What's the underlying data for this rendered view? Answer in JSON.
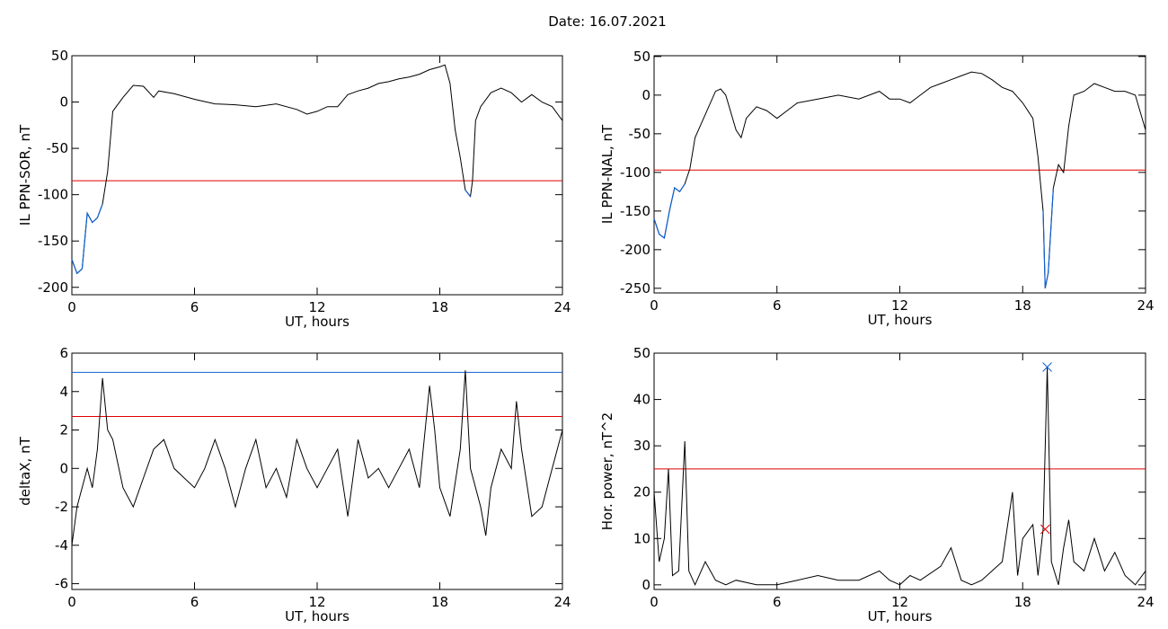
{
  "title": "Date:  16.07.2021",
  "chart_data": [
    {
      "type": "line",
      "ylabel": "IL PPN-SOR, nT",
      "xlabel": "UT, hours",
      "xlim": [
        0,
        24
      ],
      "xticks": [
        0,
        6,
        12,
        18,
        24
      ],
      "ylim": [
        -208,
        50
      ],
      "yticks": [
        -200,
        -150,
        -100,
        -50,
        0,
        50
      ],
      "x": [
        0,
        0.25,
        0.5,
        0.75,
        1,
        1.25,
        1.5,
        1.75,
        2,
        2.5,
        3,
        3.5,
        4,
        4.25,
        5,
        6,
        7,
        8,
        9,
        10,
        11,
        11.5,
        12,
        12.5,
        13,
        13.5,
        14,
        14.5,
        15,
        15.5,
        16,
        16.5,
        17,
        17.5,
        18,
        18.25,
        18.5,
        18.75,
        19,
        19.25,
        19.5,
        19.6,
        19.75,
        20,
        20.5,
        21,
        21.5,
        22,
        22.5,
        23,
        23.5,
        24
      ],
      "series": [
        {
          "color": "#000000",
          "below_color": "#1060d0",
          "values": [
            -170,
            -185,
            -180,
            -120,
            -130,
            -125,
            -110,
            -75,
            -10,
            5,
            18,
            17,
            5,
            12,
            9,
            3,
            -2,
            -3,
            -5,
            -2,
            -8,
            -13,
            -10,
            -5,
            -5,
            8,
            12,
            15,
            20,
            22,
            25,
            27,
            30,
            35,
            38,
            40,
            20,
            -30,
            -60,
            -95,
            -102,
            -85,
            -20,
            -5,
            10,
            15,
            10,
            0,
            8,
            0,
            -5,
            -20
          ]
        }
      ],
      "hlines": [
        {
          "value": -85,
          "color": "#e00000"
        }
      ]
    },
    {
      "type": "line",
      "ylabel": "IL PPN-NAL, nT",
      "xlabel": "UT, hours",
      "xlim": [
        0,
        24
      ],
      "xticks": [
        0,
        6,
        12,
        18,
        24
      ],
      "ylim": [
        -256,
        51
      ],
      "yticks": [
        -250,
        -200,
        -150,
        -100,
        -50,
        0,
        50
      ],
      "x": [
        0,
        0.25,
        0.5,
        0.75,
        1,
        1.25,
        1.5,
        1.75,
        2,
        2.5,
        3,
        3.25,
        3.5,
        4,
        4.25,
        4.5,
        5,
        5.5,
        6,
        6.5,
        7,
        8,
        9,
        10,
        11,
        11.5,
        12,
        12.5,
        13,
        13.5,
        14,
        14.5,
        15,
        15.5,
        16,
        16.5,
        17,
        17.5,
        18,
        18.5,
        18.75,
        19,
        19.1,
        19.25,
        19.5,
        19.75,
        20,
        20.25,
        20.5,
        21,
        21.5,
        22,
        22.5,
        23,
        23.5,
        24
      ],
      "series": [
        {
          "color": "#000000",
          "below_color": "#1060d0",
          "values": [
            -160,
            -180,
            -185,
            -150,
            -120,
            -125,
            -115,
            -95,
            -55,
            -25,
            5,
            8,
            0,
            -45,
            -55,
            -30,
            -15,
            -20,
            -30,
            -20,
            -10,
            -5,
            0,
            -5,
            5,
            -5,
            -5,
            -10,
            0,
            10,
            15,
            20,
            25,
            30,
            28,
            20,
            10,
            5,
            -10,
            -30,
            -80,
            -150,
            -250,
            -230,
            -120,
            -90,
            -100,
            -40,
            0,
            5,
            15,
            10,
            5,
            5,
            0,
            -45
          ]
        }
      ],
      "hlines": [
        {
          "value": -97,
          "color": "#e00000"
        }
      ]
    },
    {
      "type": "line",
      "ylabel": "deltaX, nT",
      "xlabel": "UT, hours",
      "xlim": [
        0,
        24
      ],
      "xticks": [
        0,
        6,
        12,
        18,
        24
      ],
      "ylim": [
        -6.3,
        6
      ],
      "yticks": [
        -6,
        -4,
        -2,
        0,
        2,
        4,
        6
      ],
      "x": [
        0,
        0.25,
        0.5,
        0.75,
        1,
        1.25,
        1.5,
        1.75,
        2,
        2.5,
        3,
        3.5,
        4,
        4.5,
        5,
        5.5,
        6,
        6.5,
        7,
        7.5,
        8,
        8.5,
        9,
        9.5,
        10,
        10.5,
        11,
        11.5,
        12,
        12.5,
        13,
        13.5,
        14,
        14.5,
        15,
        15.5,
        16,
        16.5,
        17,
        17.5,
        17.75,
        18,
        18.5,
        19,
        19.25,
        19.5,
        20,
        20.25,
        20.5,
        21,
        21.5,
        21.75,
        22,
        22.5,
        23,
        23.5,
        24
      ],
      "series": [
        {
          "color": "#000000",
          "values": [
            -4,
            -2,
            -1,
            0,
            -1,
            1,
            4.7,
            2,
            1.5,
            -1,
            -2,
            -0.5,
            1,
            1.5,
            0,
            -0.5,
            -1,
            0,
            1.5,
            0,
            -2,
            0,
            1.5,
            -1,
            0,
            -1.5,
            1.5,
            0,
            -1,
            0,
            1,
            -2.5,
            1.5,
            -0.5,
            0,
            -1,
            0,
            1,
            -1,
            4.3,
            2,
            -1,
            -2.5,
            1,
            5.1,
            0,
            -2,
            -3.5,
            -1,
            1,
            0,
            3.5,
            1,
            -2.5,
            -2,
            0,
            2
          ]
        }
      ],
      "hlines": [
        {
          "value": 5,
          "color": "#1060d0"
        },
        {
          "value": 2.7,
          "color": "#e00000"
        }
      ]
    },
    {
      "type": "line",
      "ylabel": "Hor. power, nT^2",
      "xlabel": "UT, hours",
      "xlim": [
        0,
        24
      ],
      "xticks": [
        0,
        6,
        12,
        18,
        24
      ],
      "ylim": [
        -1,
        50
      ],
      "yticks": [
        0,
        10,
        20,
        30,
        40,
        50
      ],
      "x": [
        0,
        0.25,
        0.5,
        0.7,
        0.9,
        1.2,
        1.5,
        1.7,
        2,
        2.5,
        3,
        3.5,
        4,
        5,
        6,
        7,
        8,
        9,
        10,
        11,
        11.5,
        12,
        12.5,
        13,
        14,
        14.5,
        15,
        15.5,
        16,
        17,
        17.5,
        17.75,
        18,
        18.5,
        18.75,
        19,
        19.2,
        19.4,
        19.75,
        20,
        20.25,
        20.5,
        21,
        21.5,
        22,
        22.5,
        23,
        23.5,
        24
      ],
      "series": [
        {
          "color": "#000000",
          "values": [
            20,
            5,
            10,
            25,
            2,
            3,
            31,
            3,
            0,
            5,
            1,
            0,
            1,
            0,
            0,
            1,
            2,
            1,
            1,
            3,
            1,
            0,
            2,
            1,
            4,
            8,
            1,
            0,
            1,
            5,
            20,
            2,
            10,
            13,
            2,
            12,
            47,
            5,
            0,
            8,
            14,
            5,
            3,
            10,
            3,
            7,
            2,
            0,
            3
          ]
        }
      ],
      "hlines": [
        {
          "value": 25,
          "color": "#e00000"
        }
      ],
      "markers": [
        {
          "x": 19.2,
          "y": 47,
          "color": "#1060d0"
        },
        {
          "x": 19.1,
          "y": 12,
          "color": "#e00000"
        }
      ]
    }
  ]
}
